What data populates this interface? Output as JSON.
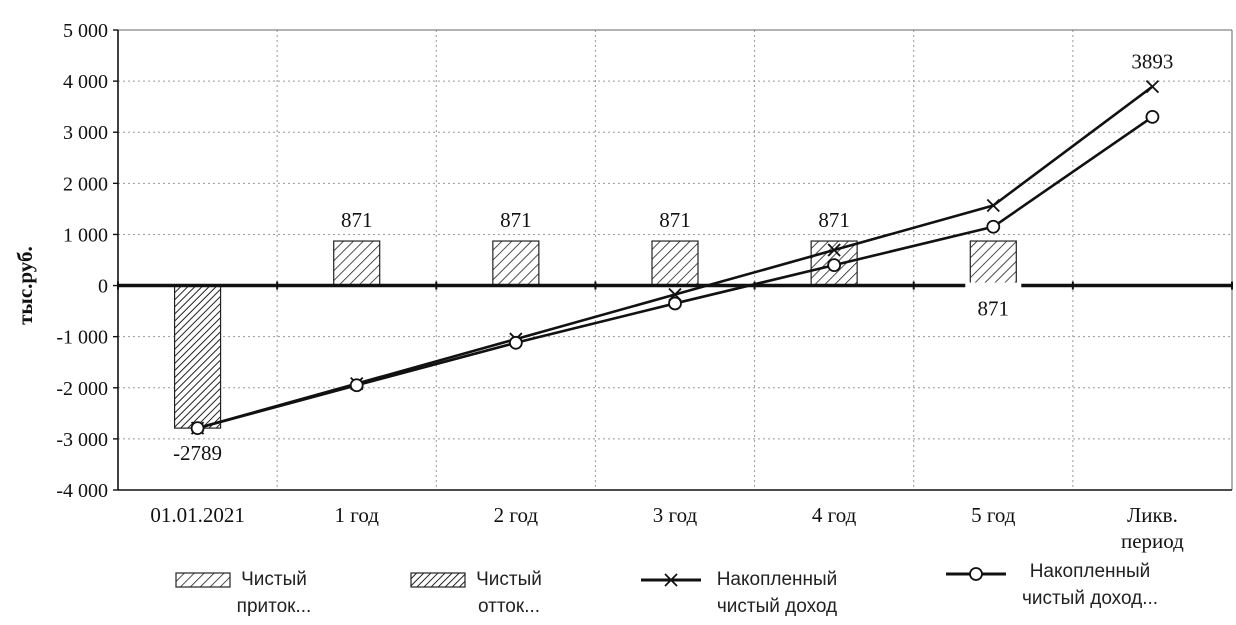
{
  "chart_data": {
    "type": "bar",
    "ylabel": "тыс.руб.",
    "ylim": [
      -4000,
      5000
    ],
    "yticks": [
      5000,
      4000,
      3000,
      2000,
      1000,
      0,
      -1000,
      -2000,
      -3000,
      -4000
    ],
    "ytick_labels": [
      "5 000",
      "4 000",
      "3 000",
      "2 000",
      "1 000",
      "0",
      "-1 000",
      "-2 000",
      "-3 000",
      "-4 000"
    ],
    "grid": true,
    "categories": [
      "01.01.2021",
      "1 год",
      "2 год",
      "3 год",
      "4 год",
      "5 год",
      "Ликв. период"
    ],
    "series": [
      {
        "name": "Чистый приток...",
        "type": "bar",
        "pattern": "light-diagonal",
        "values": [
          null,
          871,
          871,
          871,
          871,
          871,
          null
        ],
        "data_labels": [
          null,
          "871",
          "871",
          "871",
          "871",
          "871",
          null
        ]
      },
      {
        "name": "Чистый отток...",
        "type": "bar",
        "pattern": "dense-diagonal",
        "values": [
          -2789,
          null,
          null,
          null,
          null,
          null,
          null
        ],
        "data_labels": [
          "-2789",
          null,
          null,
          null,
          null,
          null,
          null
        ]
      },
      {
        "name": "Накопленный чистый доход",
        "type": "line",
        "marker": "x",
        "values": [
          -2789,
          -1918,
          -1047,
          -176,
          695,
          1566,
          3893
        ],
        "data_labels": [
          null,
          null,
          null,
          null,
          null,
          null,
          "3893"
        ]
      },
      {
        "name": "Накопленный чистый доход...",
        "type": "line",
        "marker": "circle",
        "values": [
          -2789,
          -1950,
          -1120,
          -350,
          400,
          1150,
          3300
        ]
      }
    ],
    "legend_position": "bottom"
  },
  "legend": {
    "items": [
      {
        "line1": "Чистый",
        "line2": "приток..."
      },
      {
        "line1": "Чистый",
        "line2": "отток..."
      },
      {
        "line1": "Накопленный",
        "line2": "чистый доход"
      },
      {
        "line1": "Накопленный",
        "line2": "чистый доход..."
      }
    ]
  },
  "colors": {
    "line": "#111111",
    "grid": "#9a9a9a",
    "bar_fill": "#ffffff",
    "text": "#111111"
  }
}
